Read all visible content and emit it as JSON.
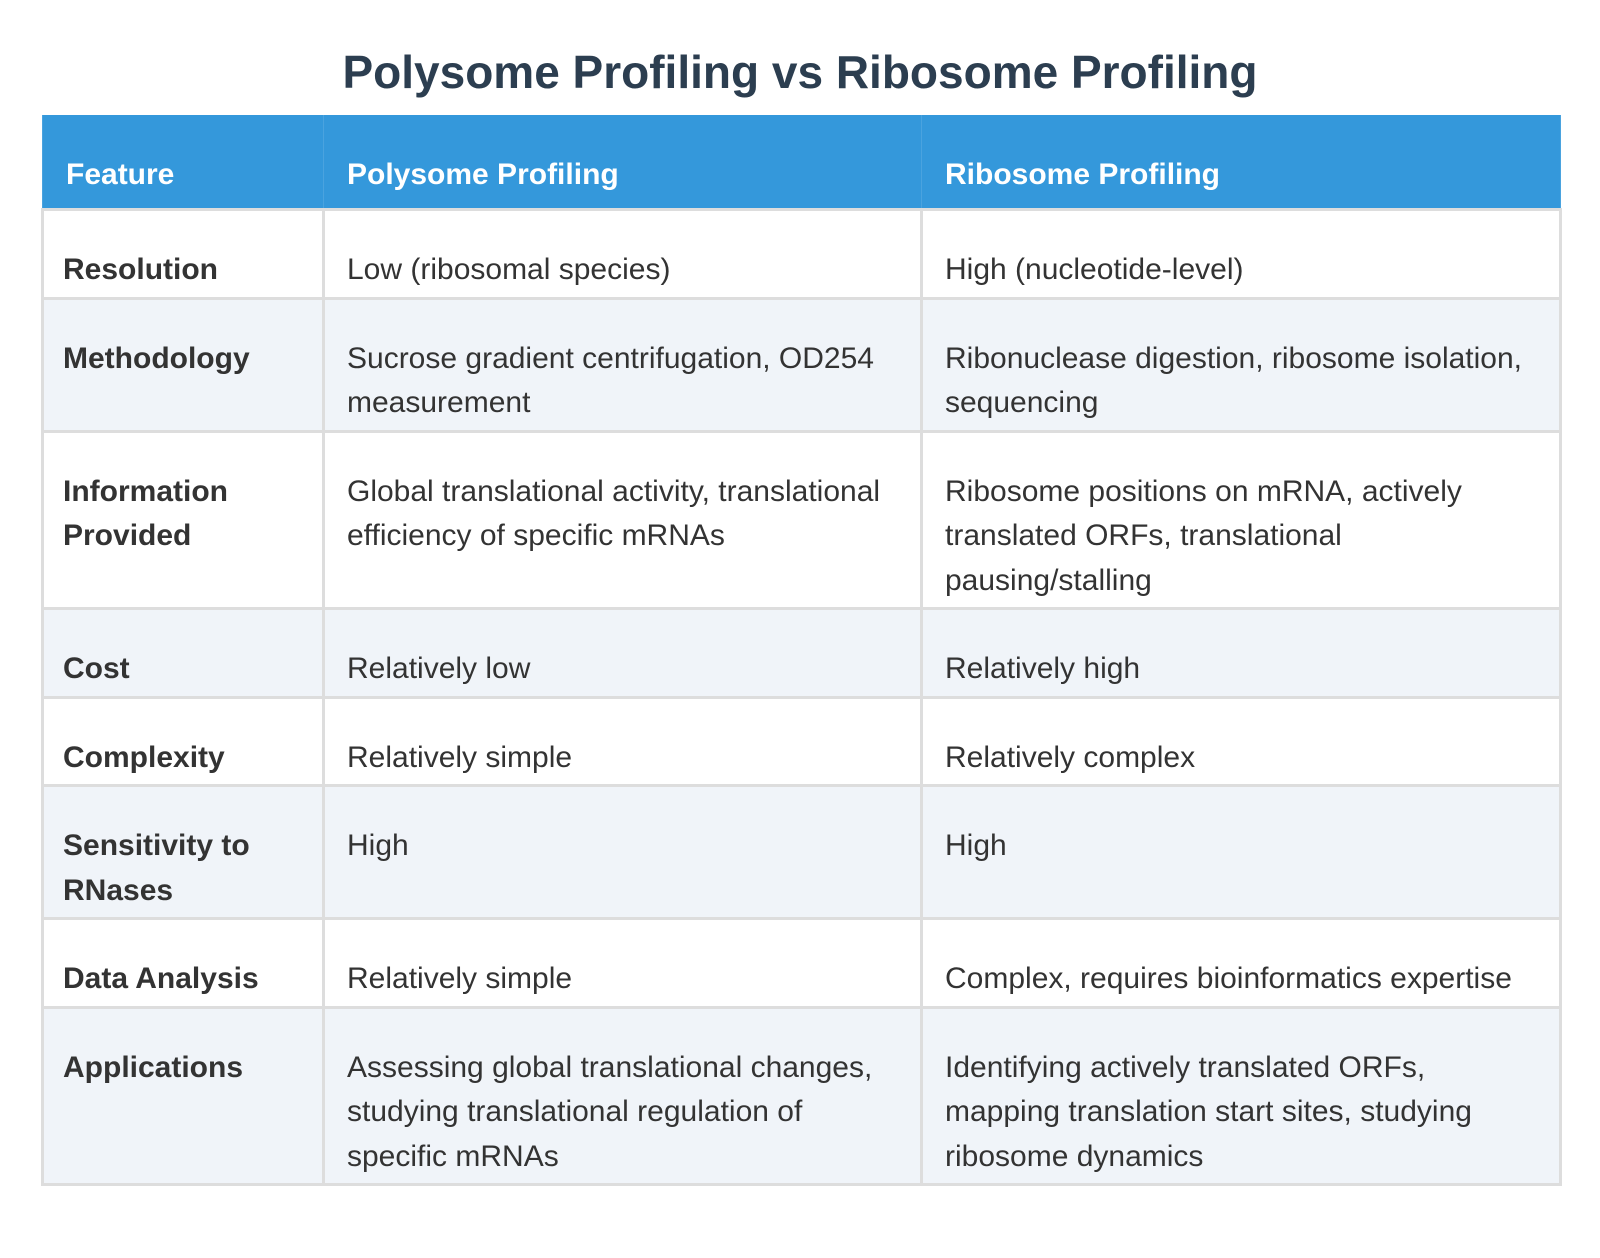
{
  "title": "Polysome Profiling vs Ribosome Profiling",
  "colors": {
    "title": "#2c3e50",
    "header_bg": "#3498db",
    "header_text": "#ffffff",
    "body_text": "#333333",
    "alt_row_bg": "#f0f4f9",
    "border": "#dddddd"
  },
  "table": {
    "headers": [
      "Feature",
      "Polysome Profiling",
      "Ribosome Profiling"
    ],
    "rows": [
      {
        "feature": "Resolution",
        "polysome": "Low (ribosomal species)",
        "ribosome": "High (nucleotide-level)"
      },
      {
        "feature": "Methodology",
        "polysome": "Sucrose gradient centrifugation, OD254 measurement",
        "ribosome": "Ribonuclease digestion, ribosome isolation, sequencing"
      },
      {
        "feature": "Information Provided",
        "polysome": "Global translational activity, translational efficiency of specific mRNAs",
        "ribosome": "Ribosome positions on mRNA, actively translated ORFs, translational pausing/stalling"
      },
      {
        "feature": "Cost",
        "polysome": "Relatively low",
        "ribosome": "Relatively high"
      },
      {
        "feature": "Complexity",
        "polysome": "Relatively simple",
        "ribosome": "Relatively complex"
      },
      {
        "feature": "Sensitivity to RNases",
        "polysome": "High",
        "ribosome": "High"
      },
      {
        "feature": "Data Analysis",
        "polysome": "Relatively simple",
        "ribosome": "Complex, requires bioinformatics expertise"
      },
      {
        "feature": "Applications",
        "polysome": "Assessing global translational changes, studying translational regulation of specific mRNAs",
        "ribosome": "Identifying actively translated ORFs, mapping translation start sites, studying ribosome dynamics"
      }
    ]
  }
}
